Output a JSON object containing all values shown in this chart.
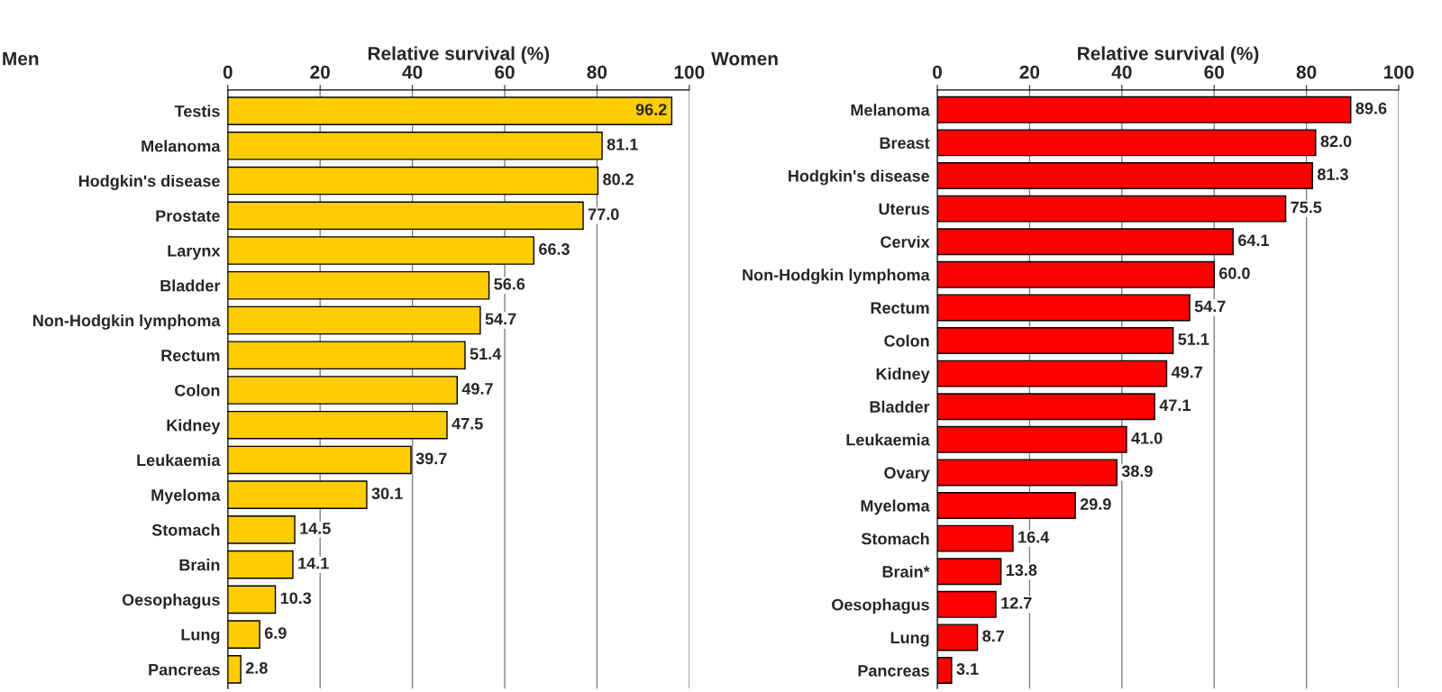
{
  "chart_data": [
    {
      "type": "bar",
      "orientation": "horizontal",
      "title": "Men",
      "xlabel": "Relative survival (%)",
      "categories": [
        "Testis",
        "Melanoma",
        "Hodgkin's disease",
        "Prostate",
        "Larynx",
        "Bladder",
        "Non-Hodgkin lymphoma",
        "Rectum",
        "Colon",
        "Kidney",
        "Leukaemia",
        "Myeloma",
        "Stomach",
        "Brain",
        "Oesophagus",
        "Lung",
        "Pancreas"
      ],
      "values": [
        96.2,
        81.1,
        80.2,
        77.0,
        66.3,
        56.6,
        54.7,
        51.4,
        49.7,
        47.5,
        39.7,
        30.1,
        14.5,
        14.1,
        10.3,
        6.9,
        2.8
      ],
      "value_labels": [
        "96.2",
        "81.1",
        "80.2",
        "77.0",
        "66.3",
        "56.6",
        "54.7",
        "51.4",
        "49.7",
        "47.5",
        "39.7",
        "30.1",
        "14.5",
        "14.1",
        "10.3",
        "6.9",
        "2.8"
      ],
      "color": "#ffcc00",
      "xlim": [
        0,
        100
      ],
      "xticks": [
        0,
        20,
        40,
        60,
        80,
        100
      ],
      "grid": "x"
    },
    {
      "type": "bar",
      "orientation": "horizontal",
      "title": "Women",
      "xlabel": "Relative survival (%)",
      "categories": [
        "Melanoma",
        "Breast",
        "Hodgkin's disease",
        "Uterus",
        "Cervix",
        "Non-Hodgkin lymphoma",
        "Rectum",
        "Colon",
        "Kidney",
        "Bladder",
        "Leukaemia",
        "Ovary",
        "Myeloma",
        "Stomach",
        "Brain*",
        "Oesophagus",
        "Lung",
        "Pancreas"
      ],
      "values": [
        89.6,
        82.0,
        81.3,
        75.5,
        64.1,
        60.0,
        54.7,
        51.1,
        49.7,
        47.1,
        41.0,
        38.9,
        29.9,
        16.4,
        13.8,
        12.7,
        8.7,
        3.1
      ],
      "value_labels": [
        "89.6",
        "82.0",
        "81.3",
        "75.5",
        "64.1",
        "60.0",
        "54.7",
        "51.1",
        "49.7",
        "47.1",
        "41.0",
        "38.9",
        "29.9",
        "16.4",
        "13.8",
        "12.7",
        "8.7",
        "3.1"
      ],
      "color": "#ff0000",
      "xlim": [
        0,
        100
      ],
      "xticks": [
        0,
        20,
        40,
        60,
        80,
        100
      ],
      "grid": "x"
    }
  ]
}
